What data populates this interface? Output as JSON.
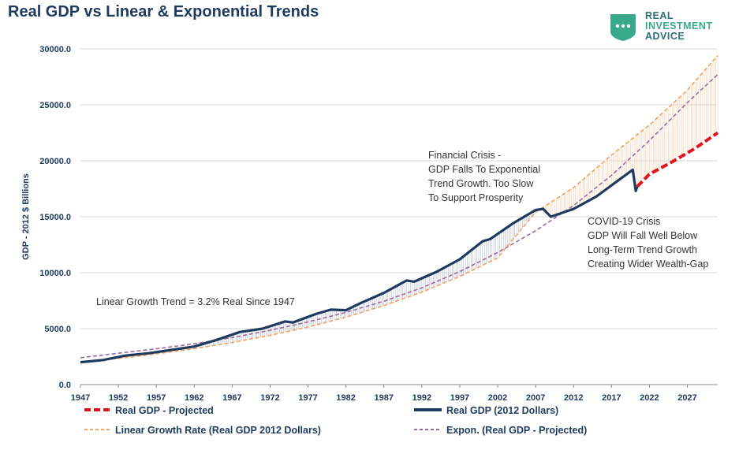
{
  "title": "Real GDP vs Linear & Exponential Trends",
  "logo": {
    "line1": "REAL",
    "line2": "INVESTMENT",
    "line3": "ADVICE",
    "icon": "chat-bubble-shield-icon",
    "color": "#3aa88a"
  },
  "chart_data": {
    "type": "line",
    "title": "Real GDP vs Linear & Exponential Trends",
    "xlabel": "",
    "ylabel": "GDP - 2012 $ Billions",
    "xlim": [
      1947,
      2031
    ],
    "ylim": [
      0,
      30000
    ],
    "x_ticks": [
      "1947",
      "1952",
      "1957",
      "1962",
      "1967",
      "1972",
      "1977",
      "1982",
      "1987",
      "1992",
      "1997",
      "2002",
      "2007",
      "2012",
      "2017",
      "2022",
      "2027"
    ],
    "y_ticks": [
      "0.0",
      "5000.0",
      "10000.0",
      "15000.0",
      "20000.0",
      "25000.0",
      "30000.0"
    ],
    "grid": true,
    "legend_position": "bottom",
    "series": [
      {
        "name": "Real GDP (2012 Dollars)",
        "color": "#1f3a5f",
        "style": "solid-thick",
        "x": [
          1947,
          1950,
          1953,
          1956,
          1959,
          1962,
          1965,
          1968,
          1971,
          1974,
          1975,
          1978,
          1980,
          1982,
          1984,
          1987,
          1990,
          1991,
          1994,
          1997,
          2000,
          2001,
          2004,
          2007,
          2008,
          2009,
          2012,
          2015,
          2018,
          2019.8,
          2020.2,
          2020.4
        ],
        "y": [
          2000,
          2200,
          2600,
          2800,
          3100,
          3400,
          4000,
          4700,
          5000,
          5650,
          5550,
          6300,
          6700,
          6650,
          7300,
          8200,
          9300,
          9200,
          10100,
          11200,
          12800,
          13000,
          14400,
          15600,
          15700,
          15000,
          15700,
          16800,
          18300,
          19200,
          17300,
          17700
        ]
      },
      {
        "name": "Real GDP - Projected",
        "color": "#e0141d",
        "style": "dashed-thick",
        "x": [
          2020.4,
          2022,
          2025,
          2028,
          2031
        ],
        "y": [
          17700,
          18800,
          19900,
          21100,
          22500
        ]
      },
      {
        "name": "Linear Growth Rate (Real GDP 2012 Dollars)",
        "color": "#f0a35e",
        "style": "dashed",
        "x": [
          1947,
          1952,
          1957,
          1962,
          1967,
          1972,
          1977,
          1982,
          1987,
          1992,
          1997,
          2002,
          2007,
          2012,
          2017,
          2022,
          2027,
          2031
        ],
        "y": [
          2000,
          2340,
          2740,
          3210,
          3760,
          4400,
          5150,
          6030,
          7060,
          8260,
          9670,
          11320,
          15400,
          17600,
          20500,
          23200,
          26300,
          29400
        ]
      },
      {
        "name": "Expon. (Real GDP - Projected)",
        "color": "#9e6a9e",
        "style": "dashed",
        "x": [
          1947,
          1952,
          1957,
          1962,
          1967,
          1972,
          1977,
          1982,
          1987,
          1992,
          1997,
          2002,
          2007,
          2012,
          2017,
          2022,
          2027,
          2031
        ],
        "y": [
          2400,
          2800,
          3200,
          3650,
          4200,
          4850,
          5600,
          6450,
          7450,
          8650,
          10100,
          11800,
          13750,
          16000,
          18700,
          21800,
          25200,
          27700
        ]
      }
    ],
    "annotations": {
      "linear": "Linear Growth Trend = 3.2% Real Since 1947",
      "financial": [
        "Financial Crisis -",
        "GDP Falls To Exponential",
        "Trend Growth. Too Slow",
        "To Support Prosperity"
      ],
      "covid": [
        "COVID-19 Crisis",
        "GDP Will Fall Well Below",
        "Long-Term Trend Growth",
        "Creating Wider Wealth-Gap"
      ]
    }
  }
}
